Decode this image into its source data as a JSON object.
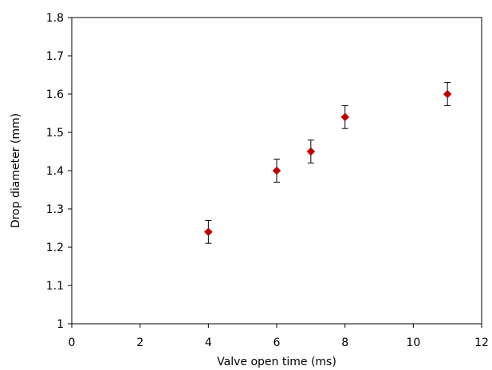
{
  "chart_data": {
    "type": "scatter",
    "title": "",
    "xlabel": "Valve open time  (ms)",
    "ylabel": "Drop diameter (mm)",
    "xlim": [
      0,
      12
    ],
    "ylim": [
      1,
      1.8
    ],
    "x_ticks": [
      0,
      2,
      4,
      6,
      8,
      10,
      12
    ],
    "y_ticks": [
      1,
      1.1,
      1.2,
      1.3,
      1.4,
      1.5,
      1.6,
      1.7,
      1.8
    ],
    "y_tick_labels": [
      "1",
      "1.1",
      "1.2",
      "1.3",
      "1.4",
      "1.5",
      "1.6",
      "1.7",
      "1.8"
    ],
    "grid": false,
    "marker_color": "#c00000",
    "error_bar_color": "#000000",
    "series": [
      {
        "x": [
          4,
          6,
          7,
          8,
          11
        ],
        "y": [
          1.24,
          1.4,
          1.45,
          1.54,
          1.6
        ],
        "error": [
          0.03,
          0.03,
          0.03,
          0.03,
          0.03
        ]
      }
    ]
  }
}
